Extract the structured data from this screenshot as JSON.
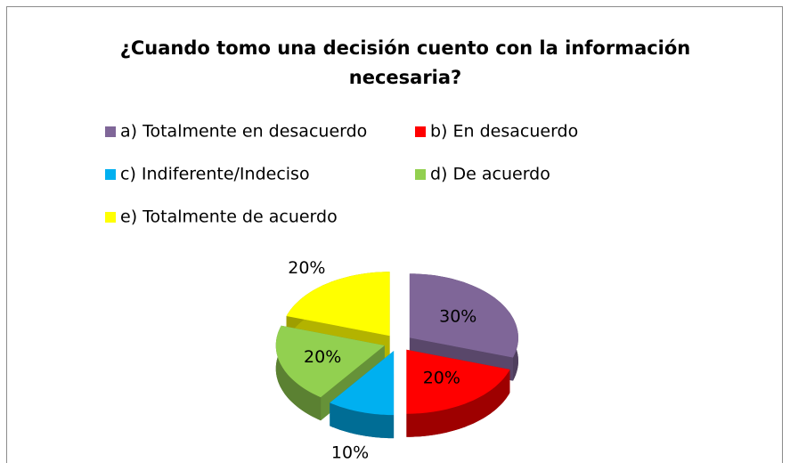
{
  "chart_data": {
    "type": "pie",
    "title": "¿Cuando tomo una decisión cuento con la información necesaria?",
    "categories": [
      "a) Totalmente en desacuerdo",
      "b) En desacuerdo",
      "c) Indiferente/Indeciso",
      "d) De acuerdo",
      "e) Totalmente de acuerdo"
    ],
    "values": [
      30,
      20,
      10,
      20,
      20
    ],
    "value_labels": [
      "30%",
      "20%",
      "10%",
      "20%",
      "20%"
    ],
    "colors": [
      "#7f6698",
      "#ff0000",
      "#00b0f0",
      "#92d050",
      "#ffff00"
    ],
    "legend": "top"
  }
}
